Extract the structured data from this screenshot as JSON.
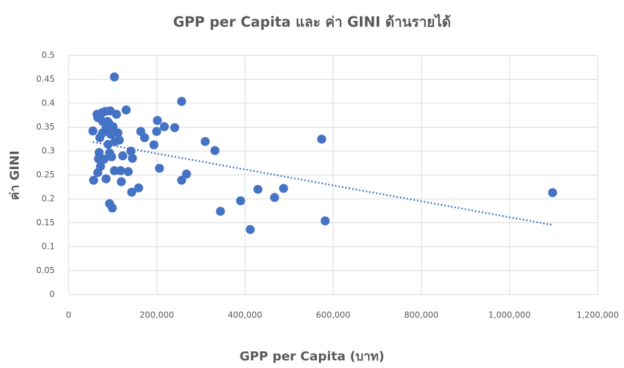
{
  "chart_data": {
    "type": "scatter",
    "title": "GPP per Capita และ ค่า GINI ด้านรายได้",
    "x_label": "GPP per Capita (บาท)",
    "y_label": "ค่า GINI",
    "color": "#4472c4",
    "x": [
      55000,
      56600,
      64500,
      66100,
      66100,
      67600,
      69200,
      70800,
      72300,
      75500,
      77100,
      77100,
      80200,
      83400,
      84900,
      84900,
      88100,
      89600,
      91200,
      92800,
      92800,
      94400,
      95900,
      97500,
      99100,
      100700,
      103800,
      103800,
      105400,
      108500,
      111700,
      114800,
      117900,
      119500,
      122700,
      130500,
      135300,
      141500,
      143100,
      144700,
      158800,
      163600,
      172200,
      193400,
      199700,
      201300,
      206000,
      217000,
      240600,
      256300,
      256300,
      267400,
      309800,
      331800,
      344400,
      390000,
      412000,
      429300,
      467100,
      487500,
      574000,
      581900,
      1097700
    ],
    "values": [
      0.342,
      0.239,
      0.377,
      0.37,
      0.255,
      0.284,
      0.297,
      0.328,
      0.268,
      0.38,
      0.362,
      0.338,
      0.283,
      0.383,
      0.348,
      0.242,
      0.362,
      0.314,
      0.358,
      0.296,
      0.19,
      0.384,
      0.335,
      0.288,
      0.181,
      0.351,
      0.455,
      0.259,
      0.32,
      0.377,
      0.338,
      0.323,
      0.259,
      0.236,
      0.29,
      0.386,
      0.257,
      0.3,
      0.214,
      0.285,
      0.223,
      0.341,
      0.328,
      0.313,
      0.341,
      0.364,
      0.264,
      0.351,
      0.349,
      0.404,
      0.239,
      0.252,
      0.32,
      0.301,
      0.174,
      0.196,
      0.136,
      0.22,
      0.203,
      0.222,
      0.325,
      0.154,
      0.213
    ],
    "trendline": {
      "color": "#4472c4",
      "x": [
        55000,
        1095000
      ],
      "values": [
        0.319,
        0.146
      ]
    },
    "xlim": [
      0,
      1200000
    ],
    "xticks": [
      0,
      {
        "value": 200000,
        "label": "200,000"
      },
      {
        "value": 400000,
        "label": "400,000"
      },
      {
        "value": 600000,
        "label": "600,000"
      },
      {
        "value": 800000,
        "label": "800,000"
      },
      {
        "value": 1000000,
        "label": "1,000,000"
      },
      {
        "value": 1200000,
        "label": "1,200,000"
      }
    ],
    "ylim": [
      0,
      0.5
    ],
    "yticks": [
      0,
      0.05,
      0.1,
      0.15,
      0.2,
      0.25,
      0.3,
      0.35,
      0.4,
      0.45,
      0.5
    ],
    "grid": true
  }
}
